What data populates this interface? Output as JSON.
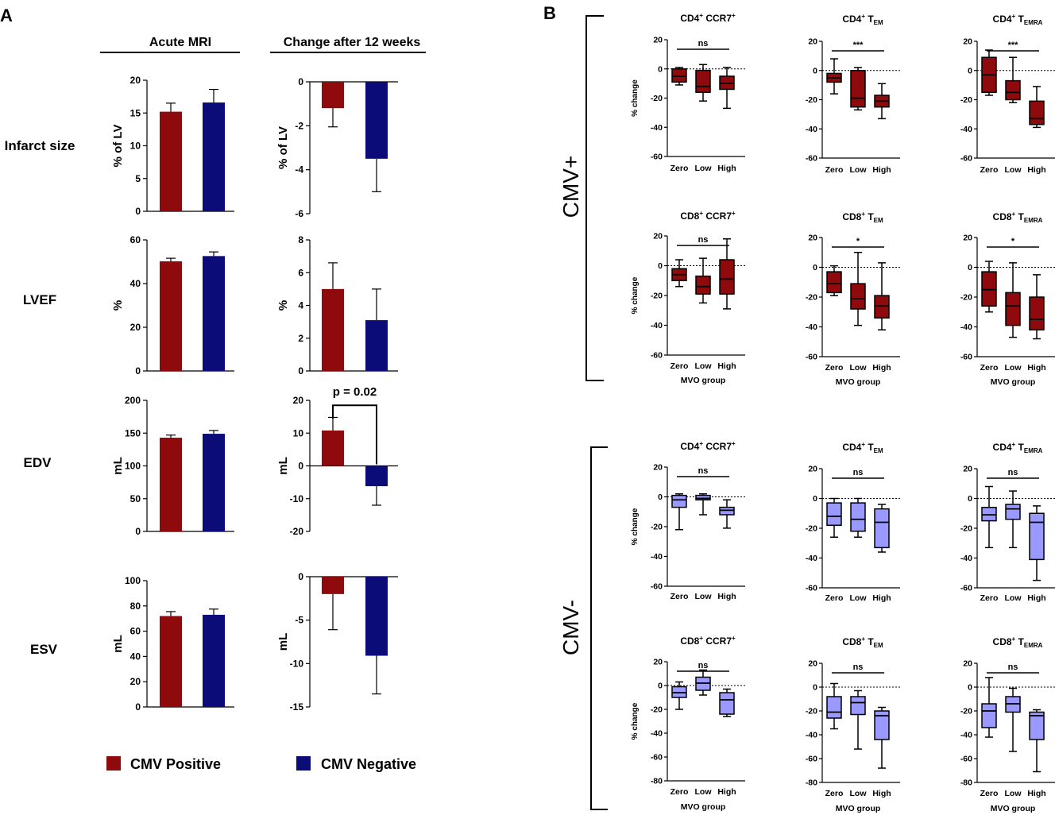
{
  "colors": {
    "cmv_pos": "#8f0a0c",
    "cmv_neg": "#0c0c78",
    "cmv_neg_box": "#9999ff"
  },
  "panel_A": {
    "label": "A",
    "headers": [
      "Acute MRI",
      "Change after 12 weeks"
    ],
    "legend": [
      "CMV Positive",
      "CMV Negative"
    ],
    "pvalue_label": "p = 0.02"
  },
  "panel_B": {
    "label": "B",
    "groups": [
      "CMV+",
      "CMV-"
    ],
    "ylabel": "% change",
    "xlabel": "MVO group"
  },
  "chart_data": [
    {
      "type": "bar",
      "id": "infarct-acute",
      "row_label": "Infarct size",
      "ylabel": "% of LV",
      "categories": [
        "CMV Positive",
        "CMV Negative"
      ],
      "values": [
        15.2,
        16.6
      ],
      "errors": [
        1.3,
        2.0
      ],
      "ylim": [
        0,
        20
      ],
      "ticks": [
        0,
        5,
        10,
        15,
        20
      ]
    },
    {
      "type": "bar",
      "id": "infarct-change",
      "ylabel": "% of LV",
      "categories": [
        "CMV Positive",
        "CMV Negative"
      ],
      "values": [
        -1.2,
        -3.5
      ],
      "errors": [
        0.85,
        1.5
      ],
      "ylim": [
        -6,
        0
      ],
      "ticks": [
        0,
        -2,
        -4,
        -6
      ]
    },
    {
      "type": "bar",
      "id": "lvef-acute",
      "row_label": "LVEF",
      "ylabel": "%",
      "categories": [
        "CMV Positive",
        "CMV Negative"
      ],
      "values": [
        50.2,
        52.6
      ],
      "errors": [
        1.4,
        1.9
      ],
      "ylim": [
        0,
        60
      ],
      "ticks": [
        0,
        20,
        40,
        60
      ]
    },
    {
      "type": "bar",
      "id": "lvef-change",
      "ylabel": "%",
      "categories": [
        "CMV Positive",
        "CMV Negative"
      ],
      "values": [
        5.0,
        3.1
      ],
      "errors": [
        1.6,
        1.9
      ],
      "ylim": [
        0,
        8
      ],
      "ticks": [
        0,
        2,
        4,
        6,
        8
      ]
    },
    {
      "type": "bar",
      "id": "edv-acute",
      "row_label": "EDV",
      "ylabel": "mL",
      "categories": [
        "CMV Positive",
        "CMV Negative"
      ],
      "values": [
        143,
        149
      ],
      "errors": [
        4,
        5
      ],
      "ylim": [
        0,
        200
      ],
      "ticks": [
        0,
        50,
        100,
        150,
        200
      ]
    },
    {
      "type": "bar",
      "id": "edv-change",
      "ylabel": "mL",
      "categories": [
        "CMV Positive",
        "CMV Negative"
      ],
      "values": [
        10.8,
        -6.2
      ],
      "errors": [
        4.0,
        5.8
      ],
      "ylim": [
        -20,
        20
      ],
      "ticks": [
        20,
        10,
        0,
        -10,
        -20
      ],
      "annotation": "p = 0.02"
    },
    {
      "type": "bar",
      "id": "esv-acute",
      "row_label": "ESV",
      "ylabel": "mL",
      "categories": [
        "CMV Positive",
        "CMV Negative"
      ],
      "values": [
        72,
        73
      ],
      "errors": [
        3.5,
        4.5
      ],
      "ylim": [
        0,
        100
      ],
      "ticks": [
        0,
        20,
        40,
        60,
        80,
        100
      ]
    },
    {
      "type": "bar",
      "id": "esv-change",
      "ylabel": "mL",
      "categories": [
        "CMV Positive",
        "CMV Negative"
      ],
      "values": [
        -2.0,
        -9.1
      ],
      "errors": [
        4.1,
        4.4
      ],
      "ylim": [
        -15,
        0
      ],
      "ticks": [
        0,
        -5,
        -10,
        -15
      ]
    },
    {
      "type": "box",
      "id": "pos-cd4-ccr7",
      "group": "CMV+",
      "title": "CD4⁺ CCR7⁺",
      "categories": [
        "Zero",
        "Low",
        "High"
      ],
      "ylabel": "% change",
      "ylim": [
        -60,
        20
      ],
      "ticks": [
        20,
        0,
        -20,
        -40,
        -60
      ],
      "boxes": [
        {
          "min": -11,
          "q1": -9,
          "median": -5,
          "q3": 0,
          "max": 1
        },
        {
          "min": -22,
          "q1": -16,
          "median": -12,
          "q3": -1,
          "max": 3
        },
        {
          "min": -27,
          "q1": -14,
          "median": -10,
          "q3": -5,
          "max": 1
        }
      ],
      "significance": "ns"
    },
    {
      "type": "box",
      "id": "pos-cd4-tem",
      "group": "CMV+",
      "title": "CD4⁺ TEM",
      "categories": [
        "Zero",
        "Low",
        "High"
      ],
      "ylim": [
        -60,
        20
      ],
      "ticks": [
        20,
        0,
        -20,
        -40,
        -60
      ],
      "boxes": [
        {
          "min": -16,
          "q1": -8,
          "median": -5,
          "q3": -2,
          "max": 8
        },
        {
          "min": -27,
          "q1": -25,
          "median": -19,
          "q3": 0,
          "max": 2
        },
        {
          "min": -33,
          "q1": -25,
          "median": -21,
          "q3": -17,
          "max": -9
        }
      ],
      "significance": "***"
    },
    {
      "type": "box",
      "id": "pos-cd4-temra",
      "group": "CMV+",
      "title": "CD4⁺ TEMRA",
      "categories": [
        "Zero",
        "Low",
        "High"
      ],
      "ylim": [
        -60,
        20
      ],
      "ticks": [
        20,
        0,
        -20,
        -40,
        -60
      ],
      "boxes": [
        {
          "min": -17,
          "q1": -15,
          "median": -3,
          "q3": 9,
          "max": 14
        },
        {
          "min": -22,
          "q1": -20,
          "median": -15,
          "q3": -7,
          "max": 9
        },
        {
          "min": -39,
          "q1": -37,
          "median": -33,
          "q3": -21,
          "max": -11
        }
      ],
      "significance": "***"
    },
    {
      "type": "box",
      "id": "pos-cd8-ccr7",
      "group": "CMV+",
      "title": "CD8⁺ CCR7⁺",
      "categories": [
        "Zero",
        "Low",
        "High"
      ],
      "xlabel": "MVO group",
      "ylim": [
        -60,
        20
      ],
      "ticks": [
        20,
        0,
        -20,
        -40,
        -60
      ],
      "boxes": [
        {
          "min": -14,
          "q1": -10,
          "median": -6,
          "q3": -2,
          "max": 4
        },
        {
          "min": -25,
          "q1": -19,
          "median": -14,
          "q3": -7,
          "max": 5
        },
        {
          "min": -29,
          "q1": -19,
          "median": -9,
          "q3": 4,
          "max": 18
        }
      ],
      "significance": "ns"
    },
    {
      "type": "box",
      "id": "pos-cd8-tem",
      "group": "CMV+",
      "title": "CD8⁺ TEM",
      "categories": [
        "Zero",
        "Low",
        "High"
      ],
      "xlabel": "MVO group",
      "ylim": [
        -60,
        20
      ],
      "ticks": [
        20,
        0,
        -20,
        -40,
        -60
      ],
      "boxes": [
        {
          "min": -19,
          "q1": -17,
          "median": -11,
          "q3": -3,
          "max": 1
        },
        {
          "min": -39,
          "q1": -28,
          "median": -21,
          "q3": -11,
          "max": 10
        },
        {
          "min": -42,
          "q1": -34,
          "median": -26,
          "q3": -19,
          "max": 3
        }
      ],
      "significance": "*"
    },
    {
      "type": "box",
      "id": "pos-cd8-temra",
      "group": "CMV+",
      "title": "CD8⁺ TEMRA",
      "categories": [
        "Zero",
        "Low",
        "High"
      ],
      "xlabel": "MVO group",
      "ylim": [
        -60,
        20
      ],
      "ticks": [
        20,
        0,
        -20,
        -40,
        -60
      ],
      "boxes": [
        {
          "min": -30,
          "q1": -26,
          "median": -15,
          "q3": -3,
          "max": 4
        },
        {
          "min": -47,
          "q1": -39,
          "median": -26,
          "q3": -17,
          "max": 3
        },
        {
          "min": -48,
          "q1": -42,
          "median": -35,
          "q3": -20,
          "max": -5
        }
      ],
      "significance": "*"
    },
    {
      "type": "box",
      "id": "neg-cd4-ccr7",
      "group": "CMV-",
      "title": "CD4⁺ CCR7⁺",
      "categories": [
        "Zero",
        "Low",
        "High"
      ],
      "ylim": [
        -60,
        20
      ],
      "ticks": [
        20,
        0,
        -20,
        -40,
        -60
      ],
      "boxes": [
        {
          "min": -22,
          "q1": -7,
          "median": -2,
          "q3": 1,
          "max": 2
        },
        {
          "min": -12,
          "q1": -2,
          "median": -1,
          "q3": 1,
          "max": 2
        },
        {
          "min": -21,
          "q1": -12,
          "median": -9,
          "q3": -7,
          "max": -2
        }
      ],
      "significance": "ns"
    },
    {
      "type": "box",
      "id": "neg-cd4-tem",
      "group": "CMV-",
      "title": "CD4⁺ TEM",
      "categories": [
        "Zero",
        "Low",
        "High"
      ],
      "ylim": [
        -60,
        20
      ],
      "ticks": [
        20,
        0,
        -20,
        -40,
        -60
      ],
      "boxes": [
        {
          "min": -26,
          "q1": -18,
          "median": -12,
          "q3": -3,
          "max": 0
        },
        {
          "min": -26,
          "q1": -22,
          "median": -14,
          "q3": -3,
          "max": 0
        },
        {
          "min": -36,
          "q1": -33,
          "median": -16,
          "q3": -7,
          "max": -4
        }
      ],
      "significance": "ns"
    },
    {
      "type": "box",
      "id": "neg-cd4-temra",
      "group": "CMV-",
      "title": "CD4⁺ TEMRA",
      "categories": [
        "Zero",
        "Low",
        "High"
      ],
      "ylim": [
        -60,
        20
      ],
      "ticks": [
        20,
        0,
        -20,
        -40,
        -60
      ],
      "boxes": [
        {
          "min": -33,
          "q1": -15,
          "median": -11,
          "q3": -6,
          "max": 8
        },
        {
          "min": -33,
          "q1": -14,
          "median": -7,
          "q3": -4,
          "max": 5
        },
        {
          "min": -55,
          "q1": -41,
          "median": -16,
          "q3": -10,
          "max": -5
        }
      ],
      "significance": "ns"
    },
    {
      "type": "box",
      "id": "neg-cd8-ccr7",
      "group": "CMV-",
      "title": "CD8⁺ CCR7⁺",
      "categories": [
        "Zero",
        "Low",
        "High"
      ],
      "xlabel": "MVO group",
      "ylim": [
        -80,
        20
      ],
      "ticks": [
        20,
        0,
        -20,
        -40,
        -60,
        -80
      ],
      "boxes": [
        {
          "min": -20,
          "q1": -10,
          "median": -6,
          "q3": -1,
          "max": 3
        },
        {
          "min": -8,
          "q1": -4,
          "median": 2,
          "q3": 7,
          "max": 13
        },
        {
          "min": -26,
          "q1": -24,
          "median": -12,
          "q3": -6,
          "max": -3
        }
      ],
      "significance": "ns"
    },
    {
      "type": "box",
      "id": "neg-cd8-tem",
      "group": "CMV-",
      "title": "CD8⁺ TEM",
      "categories": [
        "Zero",
        "Low",
        "High"
      ],
      "xlabel": "MVO group",
      "ylim": [
        -80,
        20
      ],
      "ticks": [
        20,
        0,
        -20,
        -40,
        -60,
        -80
      ],
      "boxes": [
        {
          "min": -35,
          "q1": -26,
          "median": -21,
          "q3": -8,
          "max": 3
        },
        {
          "min": -52,
          "q1": -23,
          "median": -13,
          "q3": -8,
          "max": -3
        },
        {
          "min": -68,
          "q1": -44,
          "median": -24,
          "q3": -20,
          "max": -17
        }
      ],
      "significance": "ns"
    },
    {
      "type": "box",
      "id": "neg-cd8-temra",
      "group": "CMV-",
      "title": "CD8⁺ TEMRA",
      "categories": [
        "Zero",
        "Low",
        "High"
      ],
      "xlabel": "MVO group",
      "ylim": [
        -80,
        20
      ],
      "ticks": [
        20,
        0,
        -20,
        -40,
        -60,
        -80
      ],
      "boxes": [
        {
          "min": -42,
          "q1": -34,
          "median": -20,
          "q3": -14,
          "max": 8
        },
        {
          "min": -54,
          "q1": -21,
          "median": -14,
          "q3": -8,
          "max": -1
        },
        {
          "min": -71,
          "q1": -44,
          "median": -24,
          "q3": -21,
          "max": -19
        }
      ],
      "significance": "ns"
    }
  ]
}
